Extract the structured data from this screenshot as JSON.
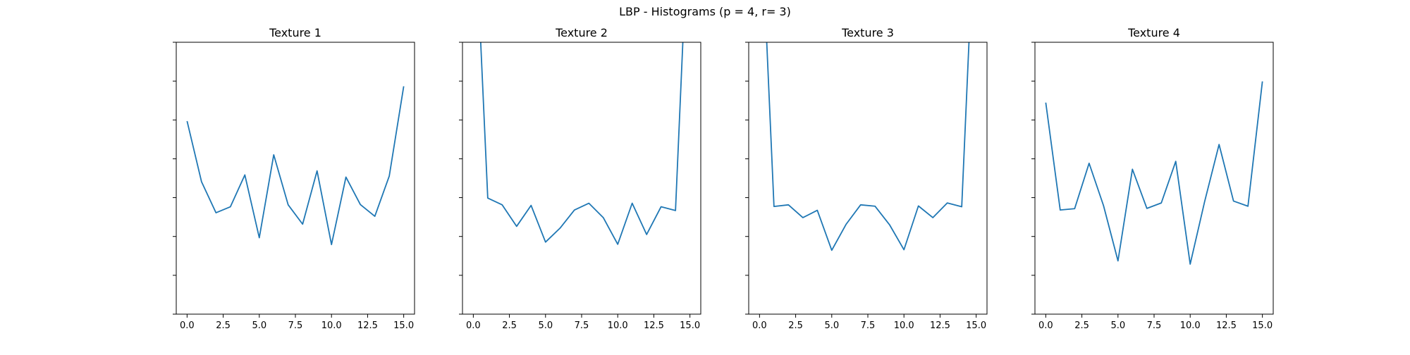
{
  "figure": {
    "suptitle": "LBP - Histograms (p = 4, r= 3)",
    "colors": {
      "line": "#1f77b4",
      "axes": "#000000",
      "background": "#ffffff"
    }
  },
  "chart_data": [
    {
      "type": "line",
      "title": "Texture 1",
      "x": [
        0,
        1,
        2,
        3,
        4,
        5,
        6,
        7,
        8,
        9,
        10,
        11,
        12,
        13,
        14,
        15
      ],
      "y": [
        0.71,
        0.487,
        0.373,
        0.395,
        0.512,
        0.281,
        0.586,
        0.402,
        0.331,
        0.527,
        0.256,
        0.504,
        0.403,
        0.36,
        0.508,
        0.838
      ],
      "xlim": [
        -0.75,
        15.75
      ],
      "ylim": [
        0,
        1
      ],
      "xticks": [
        0.0,
        2.5,
        5.0,
        7.5,
        10.0,
        12.5,
        15.0
      ],
      "xtick_labels": [
        "0.0",
        "2.5",
        "5.0",
        "7.5",
        "10.0",
        "12.5",
        "15.0"
      ],
      "ytick_labels": false,
      "grid": false
    },
    {
      "type": "line",
      "title": "Texture 2",
      "x": [
        0,
        1,
        2,
        3,
        4,
        5,
        6,
        7,
        8,
        9,
        10,
        11,
        12,
        13,
        14,
        15
      ],
      "y": [
        1.6,
        0.427,
        0.402,
        0.323,
        0.4,
        0.265,
        0.316,
        0.383,
        0.408,
        0.355,
        0.257,
        0.408,
        0.293,
        0.395,
        0.381,
        1.6
      ],
      "xlim": [
        -0.75,
        15.75
      ],
      "ylim": [
        0,
        1
      ],
      "xticks": [
        0.0,
        2.5,
        5.0,
        7.5,
        10.0,
        12.5,
        15.0
      ],
      "xtick_labels": [
        "0.0",
        "2.5",
        "5.0",
        "7.5",
        "10.0",
        "12.5",
        "15.0"
      ],
      "ytick_labels": false,
      "grid": false
    },
    {
      "type": "line",
      "title": "Texture 3",
      "x": [
        0,
        1,
        2,
        3,
        4,
        5,
        6,
        7,
        8,
        9,
        10,
        11,
        12,
        13,
        14,
        15
      ],
      "y": [
        1.6,
        0.396,
        0.402,
        0.355,
        0.382,
        0.235,
        0.331,
        0.402,
        0.397,
        0.329,
        0.237,
        0.398,
        0.355,
        0.409,
        0.395,
        1.6
      ],
      "xlim": [
        -0.75,
        15.75
      ],
      "ylim": [
        0,
        1
      ],
      "xticks": [
        0.0,
        2.5,
        5.0,
        7.5,
        10.0,
        12.5,
        15.0
      ],
      "xtick_labels": [
        "0.0",
        "2.5",
        "5.0",
        "7.5",
        "10.0",
        "12.5",
        "15.0"
      ],
      "ytick_labels": false,
      "grid": false
    },
    {
      "type": "line",
      "title": "Texture 4",
      "x": [
        0,
        1,
        2,
        3,
        4,
        5,
        6,
        7,
        8,
        9,
        10,
        11,
        12,
        13,
        14,
        15
      ],
      "y": [
        0.778,
        0.383,
        0.388,
        0.555,
        0.399,
        0.196,
        0.533,
        0.389,
        0.409,
        0.562,
        0.184,
        0.414,
        0.624,
        0.416,
        0.397,
        0.856
      ],
      "xlim": [
        -0.75,
        15.75
      ],
      "ylim": [
        0,
        1
      ],
      "xticks": [
        0.0,
        2.5,
        5.0,
        7.5,
        10.0,
        12.5,
        15.0
      ],
      "xtick_labels": [
        "0.0",
        "2.5",
        "5.0",
        "7.5",
        "10.0",
        "12.5",
        "15.0"
      ],
      "ytick_labels": false,
      "grid": false
    }
  ]
}
